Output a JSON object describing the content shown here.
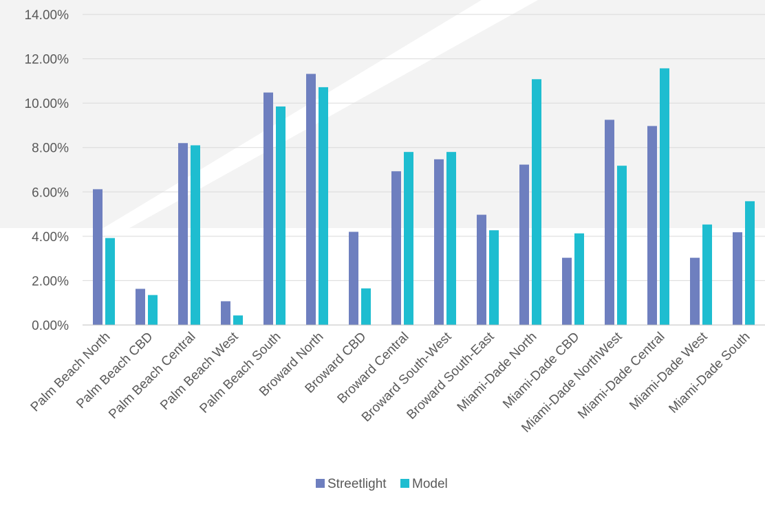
{
  "chart_data": {
    "type": "bar",
    "title": "",
    "xlabel": "",
    "ylabel": "",
    "ylim": [
      0,
      0.14
    ],
    "yticks": [
      0,
      0.02,
      0.04,
      0.06,
      0.08,
      0.1,
      0.12,
      0.14
    ],
    "ytick_labels": [
      "0.00%",
      "2.00%",
      "4.00%",
      "6.00%",
      "8.00%",
      "10.00%",
      "12.00%",
      "14.00%"
    ],
    "grid": true,
    "legend_position": "bottom",
    "categories": [
      "Palm Beach North",
      "Palm Beach CBD",
      "Palm Beach Central",
      "Palm Beach West",
      "Palm Beach South",
      "Broward North",
      "Broward CBD",
      "Broward Central",
      "Broward South-West",
      "Broward South-East",
      "Miami-Dade North",
      "Miami-Dade CBD",
      "Miami-Dade NorthWest",
      "Miami-Dade Central",
      "Miami-Dade West",
      "Miami-Dade South"
    ],
    "series": [
      {
        "name": "Streetlight",
        "color": "#6E7FBF",
        "values": [
          0.0612,
          0.0163,
          0.082,
          0.0107,
          0.1048,
          0.1132,
          0.042,
          0.0693,
          0.0747,
          0.0497,
          0.0723,
          0.0303,
          0.0925,
          0.0897,
          0.0303,
          0.0418
        ]
      },
      {
        "name": "Model",
        "color": "#1EBDD0",
        "values": [
          0.0392,
          0.0135,
          0.081,
          0.0043,
          0.0985,
          0.1072,
          0.0165,
          0.078,
          0.078,
          0.0427,
          0.1108,
          0.0413,
          0.0718,
          0.1157,
          0.0453,
          0.0558
        ]
      }
    ]
  }
}
